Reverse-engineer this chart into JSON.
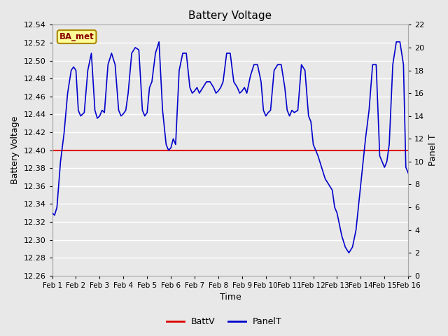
{
  "title": "Battery Voltage",
  "xlabel": "Time",
  "ylabel_left": "Battery Voltage",
  "ylabel_right": "Panel T",
  "ylim_left": [
    12.26,
    12.54
  ],
  "ylim_right": [
    0,
    22
  ],
  "xlim": [
    0,
    15
  ],
  "xtick_labels": [
    "Feb 1",
    "Feb 2",
    "Feb 3",
    "Feb 4",
    "Feb 5",
    "Feb 6",
    "Feb 7",
    "Feb 8",
    "Feb 9",
    "Feb 10",
    "Feb 11",
    "Feb 12",
    "Feb 13",
    "Feb 14",
    "Feb 15",
    "Feb 16"
  ],
  "batt_v": 12.4,
  "batt_color": "#dd0000",
  "panel_color": "#0000cc",
  "fig_bg_color": "#e8e8e8",
  "plot_bg_color": "#e8e8e8",
  "ba_met_text": "BA_met",
  "ba_met_bg": "#ffff99",
  "ba_met_fg": "#880000",
  "legend_labels": [
    "BattV",
    "PanelT"
  ],
  "panel_t_x": [
    0.0,
    0.1,
    0.2,
    0.35,
    0.5,
    0.65,
    0.8,
    0.9,
    1.0,
    1.1,
    1.2,
    1.35,
    1.5,
    1.65,
    1.8,
    1.9,
    2.0,
    2.1,
    2.2,
    2.35,
    2.5,
    2.65,
    2.8,
    2.9,
    3.0,
    3.1,
    3.2,
    3.35,
    3.5,
    3.65,
    3.8,
    3.9,
    4.0,
    4.1,
    4.2,
    4.35,
    4.5,
    4.65,
    4.8,
    4.9,
    5.0,
    5.1,
    5.2,
    5.35,
    5.5,
    5.65,
    5.8,
    5.9,
    6.0,
    6.1,
    6.2,
    6.35,
    6.5,
    6.65,
    6.8,
    6.9,
    7.0,
    7.1,
    7.2,
    7.35,
    7.5,
    7.65,
    7.8,
    7.9,
    8.0,
    8.1,
    8.2,
    8.35,
    8.5,
    8.65,
    8.8,
    8.9,
    9.0,
    9.1,
    9.2,
    9.35,
    9.5,
    9.65,
    9.8,
    9.9,
    10.0,
    10.1,
    10.2,
    10.35,
    10.5,
    10.65,
    10.8,
    10.9,
    11.0,
    11.1,
    11.2,
    11.35,
    11.5,
    11.65,
    11.8,
    11.9,
    12.0,
    12.1,
    12.2,
    12.35,
    12.5,
    12.65,
    12.8,
    12.9,
    13.0,
    13.1,
    13.2,
    13.35,
    13.5,
    13.65,
    13.8,
    13.9,
    14.0,
    14.1,
    14.2,
    14.35,
    14.5,
    14.65,
    14.8,
    14.9,
    15.0
  ],
  "panel_t_y": [
    5.5,
    5.3,
    6.0,
    10.0,
    12.5,
    16.0,
    18.0,
    18.3,
    18.0,
    14.5,
    14.0,
    14.3,
    18.0,
    19.5,
    14.5,
    13.8,
    14.0,
    14.5,
    14.3,
    18.5,
    19.5,
    18.5,
    14.5,
    14.0,
    14.2,
    14.5,
    16.0,
    19.5,
    20.0,
    19.8,
    14.5,
    14.0,
    14.3,
    16.5,
    17.0,
    19.5,
    20.5,
    14.5,
    11.5,
    11.0,
    11.2,
    12.0,
    11.5,
    18.0,
    19.5,
    19.5,
    16.5,
    16.0,
    16.2,
    16.5,
    16.0,
    16.5,
    17.0,
    17.0,
    16.5,
    16.0,
    16.2,
    16.5,
    17.0,
    19.5,
    19.5,
    17.0,
    16.5,
    16.0,
    16.2,
    16.5,
    16.0,
    17.5,
    18.5,
    18.5,
    17.0,
    14.5,
    14.0,
    14.3,
    14.5,
    18.0,
    18.5,
    18.5,
    16.5,
    14.5,
    14.0,
    14.5,
    14.3,
    14.5,
    18.5,
    18.0,
    14.0,
    13.5,
    11.5,
    11.0,
    10.5,
    9.5,
    8.5,
    8.0,
    7.5,
    6.0,
    5.5,
    4.5,
    3.5,
    2.5,
    2.0,
    2.5,
    4.0,
    6.0,
    8.0,
    10.0,
    12.0,
    14.5,
    18.5,
    18.5,
    10.5,
    10.0,
    9.5,
    10.0,
    11.5,
    18.5,
    20.5,
    20.5,
    18.5,
    9.5,
    9.0
  ]
}
